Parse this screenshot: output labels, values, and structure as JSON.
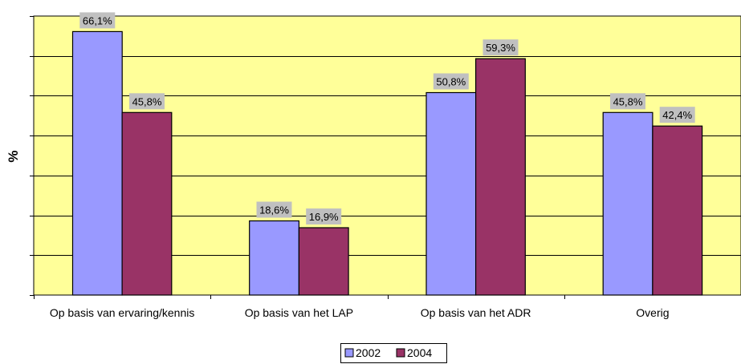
{
  "chart_data": {
    "type": "bar",
    "title": "",
    "xlabel": "",
    "ylabel": "%",
    "ylim": [
      0,
      70
    ],
    "y_ticks_labeled": false,
    "grid": true,
    "legend_position": "bottom",
    "categories": [
      "Op basis van ervaring/kennis",
      "Op basis van het LAP",
      "Op basis van het ADR",
      "Overig"
    ],
    "series": [
      {
        "name": "2002",
        "color": "#9999ff",
        "values": [
          66.1,
          18.6,
          50.8,
          45.8
        ],
        "labels": [
          "66,1%",
          "18,6%",
          "50,8%",
          "45,8%"
        ]
      },
      {
        "name": "2004",
        "color": "#993366",
        "values": [
          45.8,
          16.9,
          59.3,
          42.4
        ],
        "labels": [
          "45,8%",
          "16,9%",
          "59,3%",
          "42,4%"
        ]
      }
    ],
    "colors": {
      "plot_background": "#ffff99",
      "label_background": "#c0c0c0",
      "gridline": "#000000"
    }
  }
}
